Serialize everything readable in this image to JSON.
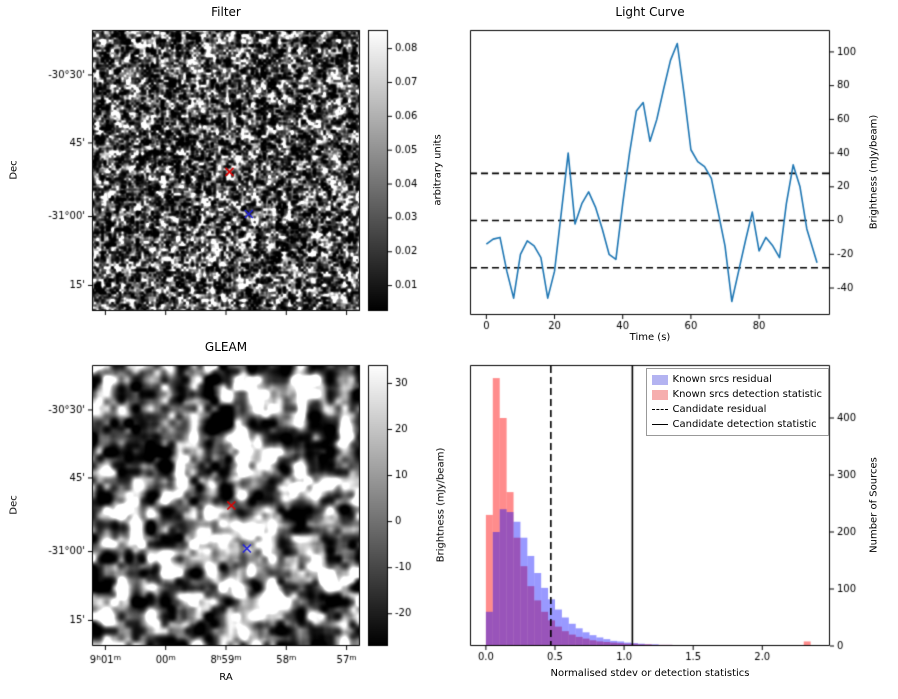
{
  "figure": {
    "background": "#ffffff",
    "text_color": "#000000"
  },
  "chart_data": [
    {
      "type": "heatmap",
      "panel": "top-left",
      "title": "Filter",
      "ylabel": "Dec",
      "colorbar_label": "arbitrary units",
      "colormap": "gray",
      "colorbar": {
        "vmin": 0.0025,
        "vmax": 0.0855,
        "ticks": [
          0.01,
          0.02,
          0.03,
          0.04,
          0.05,
          0.06,
          0.07,
          0.08
        ],
        "tick_labels": [
          "0.01",
          "0.02",
          "0.03",
          "0.04",
          "0.05",
          "0.06",
          "0.07",
          "0.08"
        ]
      },
      "yticks": [
        {
          "label": "-30°30'",
          "pos": 0.16
        },
        {
          "label": "45'",
          "pos": 0.402
        },
        {
          "label": "-31°00'",
          "pos": 0.664
        },
        {
          "label": "15'",
          "pos": 0.909
        }
      ],
      "xticks": [
        {
          "pos": 0.05
        },
        {
          "pos": 0.275
        },
        {
          "pos": 0.5
        },
        {
          "pos": 0.725
        },
        {
          "pos": 0.95
        }
      ],
      "markers": [
        {
          "name": "candidate-marker",
          "color": "#dd0000",
          "x": 0.513,
          "y": 0.505
        },
        {
          "name": "reference-marker",
          "color": "#2222dd",
          "x": 0.585,
          "y": 0.655
        }
      ]
    },
    {
      "type": "line",
      "panel": "top-right",
      "title": "Light Curve",
      "xlabel": "Time (s)",
      "ylabel": "Brightness (mJy/beam)",
      "line_color": "#1f77b4",
      "x": [
        0,
        2,
        4,
        6,
        8,
        10,
        12,
        14,
        16,
        18,
        20,
        22,
        24,
        26,
        28,
        30,
        32,
        34,
        36,
        38,
        40,
        42,
        44,
        46,
        48,
        50,
        52,
        54,
        56,
        58,
        60,
        62,
        64,
        66,
        68,
        70,
        72,
        74,
        76,
        78,
        80,
        82,
        84,
        86,
        88,
        90,
        92,
        94,
        97
      ],
      "y": [
        -14,
        -11,
        -10,
        -30,
        -46,
        -20,
        -12,
        -15,
        -22,
        -46,
        -30,
        5,
        40,
        -2,
        10,
        17,
        8,
        -5,
        -20,
        -23,
        10,
        40,
        65,
        70,
        47,
        60,
        78,
        95,
        105,
        75,
        42,
        35,
        32,
        25,
        5,
        -15,
        -48,
        -30,
        -12,
        5,
        -18,
        -10,
        -15,
        -22,
        10,
        33,
        20,
        -5,
        -25
      ],
      "threshold_lines": [
        28,
        0,
        -28
      ],
      "xlim": [
        -4.8,
        100.8
      ],
      "ylim": [
        -56,
        113
      ],
      "xticks": [
        0,
        20,
        40,
        60,
        80
      ],
      "yticks": [
        -40,
        -20,
        0,
        20,
        40,
        60,
        80,
        100
      ]
    },
    {
      "type": "heatmap",
      "panel": "bottom-left",
      "title": "GLEAM",
      "xlabel": "RA",
      "ylabel": "Dec",
      "colorbar_label": "Brightness (mJy/beam)",
      "colormap": "gray",
      "colorbar": {
        "vmin": -27,
        "vmax": 34,
        "ticks": [
          -20,
          -10,
          0,
          10,
          20,
          30
        ],
        "tick_labels": [
          "-20",
          "-10",
          "0",
          "10",
          "20",
          "30"
        ]
      },
      "yticks": [
        {
          "label": "-30°30'",
          "pos": 0.16
        },
        {
          "label": "45'",
          "pos": 0.402
        },
        {
          "label": "-31°00'",
          "pos": 0.664
        },
        {
          "label": "15'",
          "pos": 0.909
        }
      ],
      "xticks": [
        {
          "label": "9h01m",
          "pos": 0.05
        },
        {
          "label": "00m",
          "pos": 0.275
        },
        {
          "label": "8h59m",
          "pos": 0.5
        },
        {
          "label": "58m",
          "pos": 0.725
        },
        {
          "label": "57m",
          "pos": 0.95
        }
      ],
      "markers": [
        {
          "name": "candidate-marker",
          "color": "#dd0000",
          "x": 0.52,
          "y": 0.5
        },
        {
          "name": "reference-marker",
          "color": "#2222dd",
          "x": 0.578,
          "y": 0.653
        }
      ]
    },
    {
      "type": "histogram",
      "panel": "bottom-right",
      "xlabel": "Normalised stdev or detection statistics",
      "ylabel": "Number of Sources",
      "bin_start": 0,
      "bin_width": 0.05,
      "series": [
        {
          "name": "Known srcs residual",
          "fill": "rgba(0,0,255,0.4)",
          "legend_color": "#b3b3f1",
          "values": [
            60,
            200,
            240,
            235,
            218,
            190,
            158,
            128,
            102,
            82,
            64,
            50,
            39,
            31,
            24,
            19,
            15,
            12,
            9,
            8,
            6,
            5,
            4,
            3,
            3,
            2,
            2,
            1,
            1,
            1,
            1,
            0,
            1,
            0,
            0,
            1,
            0,
            0,
            0,
            0,
            0,
            0,
            0,
            0,
            0,
            0,
            0,
            0
          ]
        },
        {
          "name": "Known srcs detection statistic",
          "fill": "rgba(255,0,0,0.45)",
          "legend_color": "#f6aeae",
          "values": [
            230,
            470,
            400,
            270,
            190,
            140,
            105,
            80,
            60,
            45,
            34,
            26,
            20,
            16,
            13,
            10,
            8,
            7,
            6,
            5,
            4,
            4,
            3,
            3,
            2,
            2,
            2,
            1,
            1,
            1,
            1,
            1,
            0,
            1,
            0,
            0,
            1,
            0,
            0,
            0,
            1,
            0,
            0,
            0,
            0,
            0,
            8,
            0
          ]
        }
      ],
      "vlines": [
        {
          "name": "Candidate residual",
          "style": "dashed",
          "x": 0.47,
          "color": "#000000"
        },
        {
          "name": "Candidate detection statistic",
          "style": "solid",
          "x": 1.06,
          "color": "#000000"
        }
      ],
      "xlim": [
        -0.115,
        2.49
      ],
      "ylim": [
        0,
        493
      ],
      "xticks": [
        0,
        0.5,
        1.0,
        1.5,
        2.0
      ],
      "xtick_labels": [
        "0.0",
        "0.5",
        "1.0",
        "1.5",
        "2.0"
      ],
      "yticks": [
        0,
        100,
        200,
        300,
        400
      ]
    }
  ]
}
